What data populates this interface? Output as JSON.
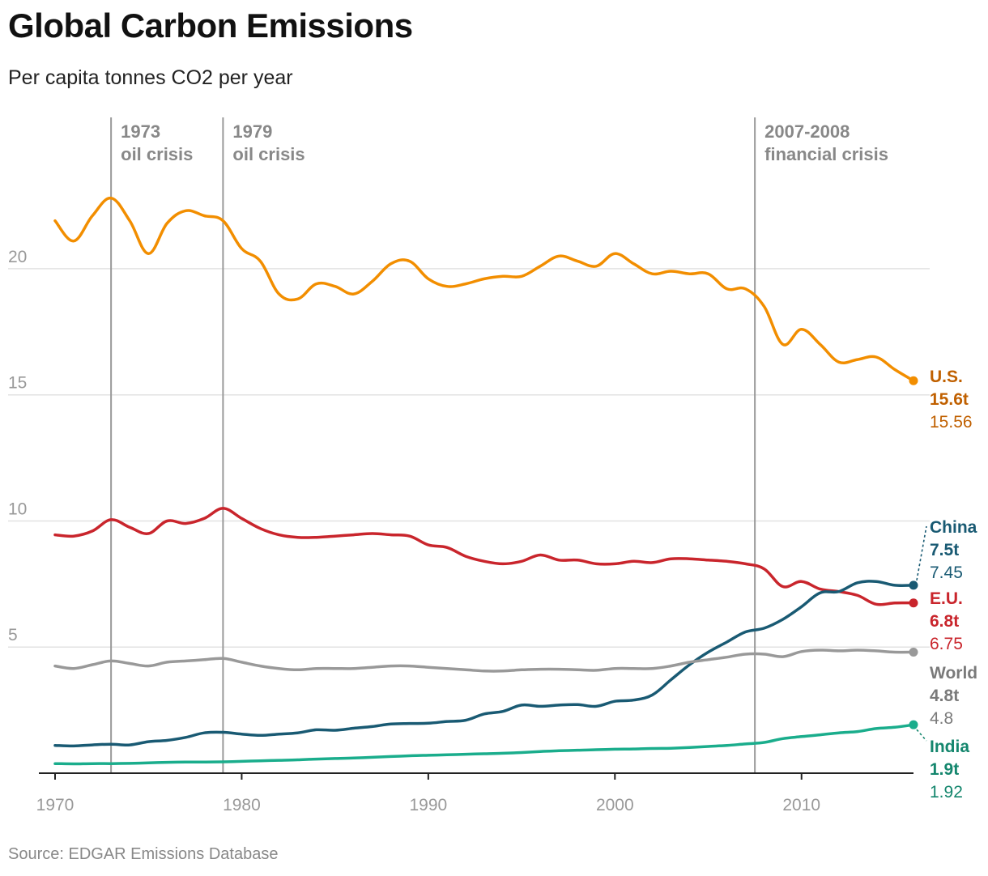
{
  "title": "Global Carbon Emissions",
  "subtitle": "Per capita tonnes CO2 per year",
  "source": "Source: EDGAR Emissions Database",
  "chart_data": {
    "type": "line",
    "title": "Global Carbon Emissions",
    "subtitle": "Per capita tonnes CO2 per year",
    "xlabel": "",
    "ylabel": "",
    "xlim": [
      1970,
      2016
    ],
    "ylim": [
      0,
      26
    ],
    "x_ticks": [
      1970,
      1980,
      1990,
      2000,
      2010
    ],
    "y_ticks": [
      5,
      10,
      15,
      20
    ],
    "grid": true,
    "x": [
      1970,
      1971,
      1972,
      1973,
      1974,
      1975,
      1976,
      1977,
      1978,
      1979,
      1980,
      1981,
      1982,
      1983,
      1984,
      1985,
      1986,
      1987,
      1988,
      1989,
      1990,
      1991,
      1992,
      1993,
      1994,
      1995,
      1996,
      1997,
      1998,
      1999,
      2000,
      2001,
      2002,
      2003,
      2004,
      2005,
      2006,
      2007,
      2008,
      2009,
      2010,
      2011,
      2012,
      2013,
      2014,
      2015,
      2016
    ],
    "annotations": [
      {
        "x": 1973,
        "line1": "1973",
        "line2": "oil crisis"
      },
      {
        "x": 1979,
        "line1": "1979",
        "line2": "oil crisis"
      },
      {
        "x": 2007.5,
        "line1": "2007-2008",
        "line2": "financial crisis"
      }
    ],
    "series": [
      {
        "name": "U.S.",
        "color": "#f28e00",
        "label_color": "#c06000",
        "rounded": "15.6t",
        "last_value": "15.56",
        "values": [
          21.9,
          21.1,
          22.1,
          22.8,
          21.9,
          20.6,
          21.8,
          22.3,
          22.1,
          21.9,
          20.8,
          20.3,
          19.0,
          18.8,
          19.4,
          19.3,
          19.0,
          19.5,
          20.2,
          20.3,
          19.6,
          19.3,
          19.4,
          19.6,
          19.7,
          19.7,
          20.1,
          20.5,
          20.3,
          20.1,
          20.6,
          20.2,
          19.8,
          19.9,
          19.8,
          19.8,
          19.2,
          19.2,
          18.5,
          17.0,
          17.6,
          17.0,
          16.3,
          16.4,
          16.5,
          16.0,
          15.56
        ]
      },
      {
        "name": "E.U.",
        "color": "#c9252c",
        "label_color": "#c9252c",
        "rounded": "6.8t",
        "last_value": "6.75",
        "values": [
          9.45,
          9.4,
          9.6,
          10.05,
          9.75,
          9.5,
          10.0,
          9.9,
          10.1,
          10.5,
          10.1,
          9.7,
          9.45,
          9.35,
          9.35,
          9.4,
          9.45,
          9.5,
          9.45,
          9.4,
          9.05,
          8.95,
          8.6,
          8.4,
          8.3,
          8.4,
          8.65,
          8.45,
          8.45,
          8.3,
          8.3,
          8.4,
          8.35,
          8.5,
          8.5,
          8.45,
          8.4,
          8.3,
          8.1,
          7.4,
          7.6,
          7.3,
          7.2,
          7.05,
          6.7,
          6.75,
          6.75
        ]
      },
      {
        "name": "China",
        "color": "#195a73",
        "label_color": "#195a73",
        "rounded": "7.5t",
        "last_value": "7.45",
        "values": [
          1.1,
          1.08,
          1.12,
          1.15,
          1.12,
          1.25,
          1.3,
          1.42,
          1.6,
          1.62,
          1.55,
          1.5,
          1.55,
          1.6,
          1.72,
          1.7,
          1.78,
          1.85,
          1.95,
          1.97,
          1.98,
          2.05,
          2.1,
          2.35,
          2.45,
          2.7,
          2.65,
          2.7,
          2.72,
          2.65,
          2.85,
          2.9,
          3.1,
          3.7,
          4.3,
          4.8,
          5.2,
          5.6,
          5.75,
          6.1,
          6.6,
          7.15,
          7.2,
          7.55,
          7.6,
          7.45,
          7.45
        ]
      },
      {
        "name": "World",
        "color": "#999999",
        "label_color": "#7a7a7a",
        "rounded": "4.8t",
        "last_value": "4.8",
        "values": [
          4.25,
          4.15,
          4.3,
          4.45,
          4.35,
          4.25,
          4.4,
          4.45,
          4.5,
          4.55,
          4.4,
          4.25,
          4.15,
          4.1,
          4.15,
          4.15,
          4.15,
          4.2,
          4.25,
          4.25,
          4.2,
          4.15,
          4.1,
          4.05,
          4.05,
          4.1,
          4.12,
          4.12,
          4.1,
          4.08,
          4.15,
          4.15,
          4.15,
          4.25,
          4.4,
          4.5,
          4.6,
          4.72,
          4.72,
          4.62,
          4.82,
          4.88,
          4.85,
          4.88,
          4.85,
          4.8,
          4.8
        ]
      },
      {
        "name": "India",
        "color": "#1aad8c",
        "label_color": "#14866d",
        "rounded": "1.9t",
        "last_value": "1.92",
        "values": [
          0.38,
          0.37,
          0.38,
          0.38,
          0.39,
          0.41,
          0.43,
          0.44,
          0.44,
          0.45,
          0.47,
          0.49,
          0.51,
          0.53,
          0.56,
          0.58,
          0.6,
          0.63,
          0.66,
          0.69,
          0.71,
          0.73,
          0.75,
          0.77,
          0.79,
          0.82,
          0.86,
          0.89,
          0.91,
          0.93,
          0.95,
          0.96,
          0.98,
          0.99,
          1.02,
          1.06,
          1.1,
          1.16,
          1.22,
          1.37,
          1.45,
          1.52,
          1.6,
          1.65,
          1.77,
          1.82,
          1.92
        ]
      }
    ]
  }
}
